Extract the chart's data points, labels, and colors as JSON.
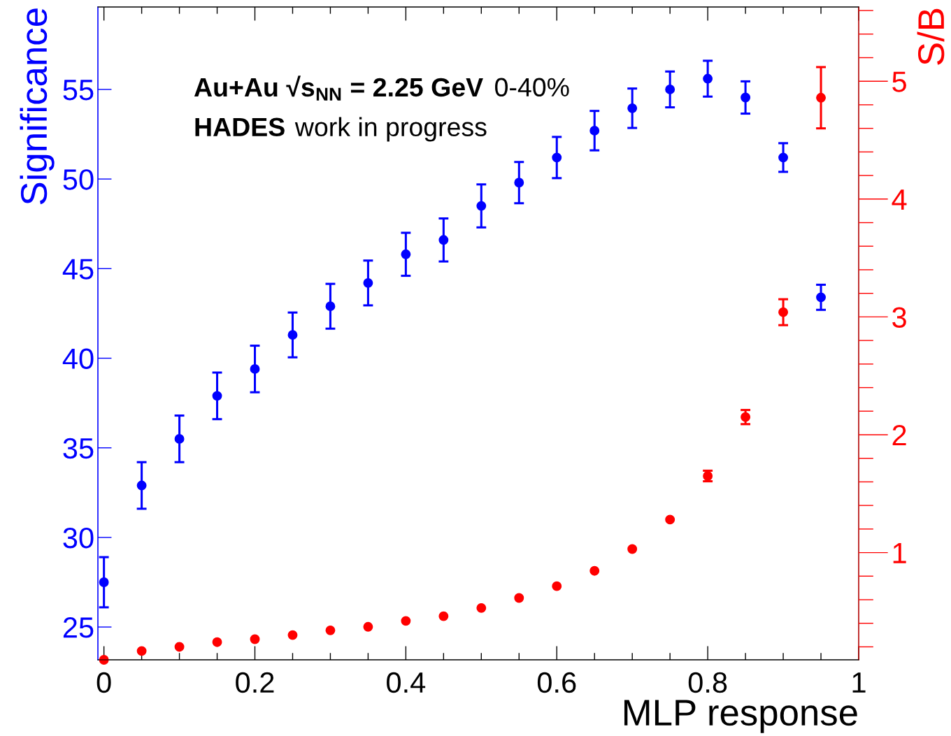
{
  "chart_data": {
    "type": "scatter",
    "xlabel": "MLP response",
    "ylabel": "Significance",
    "y2label": "S/B",
    "annotations": [
      "Au+Au √s$_{NN}$ = 2.25 GeV",
      "0-40%",
      "HADES",
      "work in progress"
    ],
    "x": [
      0,
      0.05,
      0.1,
      0.15,
      0.2,
      0.25,
      0.3,
      0.35,
      0.4,
      0.45,
      0.5,
      0.55,
      0.6,
      0.65,
      0.7,
      0.75,
      0.8,
      0.85,
      0.9,
      0.95
    ],
    "series": [
      {
        "color": "#0000ff",
        "axis": "y",
        "values": [
          27.5,
          32.9,
          35.5,
          37.9,
          39.4,
          41.3,
          42.9,
          44.2,
          45.8,
          46.6,
          48.5,
          49.8,
          51.2,
          52.7,
          53.95,
          55.0,
          55.6,
          54.55,
          51.2,
          43.4
        ],
        "errors": [
          1.4,
          1.3,
          1.3,
          1.3,
          1.3,
          1.25,
          1.25,
          1.25,
          1.2,
          1.2,
          1.2,
          1.15,
          1.15,
          1.1,
          1.1,
          1.0,
          1.0,
          0.9,
          0.8,
          0.7
        ]
      },
      {
        "color": "#ff0000",
        "axis": "y2",
        "values": [
          0.09,
          0.165,
          0.2,
          0.24,
          0.265,
          0.3,
          0.34,
          0.37,
          0.42,
          0.46,
          0.53,
          0.615,
          0.715,
          0.845,
          1.03,
          1.28,
          1.65,
          2.15,
          3.04,
          4.86
        ],
        "errors": [
          null,
          null,
          null,
          null,
          null,
          null,
          null,
          null,
          null,
          null,
          null,
          null,
          null,
          null,
          null,
          null,
          0.045,
          0.06,
          0.11,
          0.26
        ]
      }
    ],
    "xlim": [
      -0.008,
      1
    ],
    "xticks": [
      0,
      0.2,
      0.4,
      0.6,
      0.8,
      1
    ],
    "ylim": [
      23.17,
      59.6
    ],
    "yticks": [
      25,
      30,
      35,
      40,
      45,
      50,
      55
    ],
    "y2lim": [
      0.09,
      5.63
    ],
    "y2ticks": [
      1,
      2,
      3,
      4,
      5
    ],
    "marker": "circle",
    "grid": false,
    "legend": false
  }
}
